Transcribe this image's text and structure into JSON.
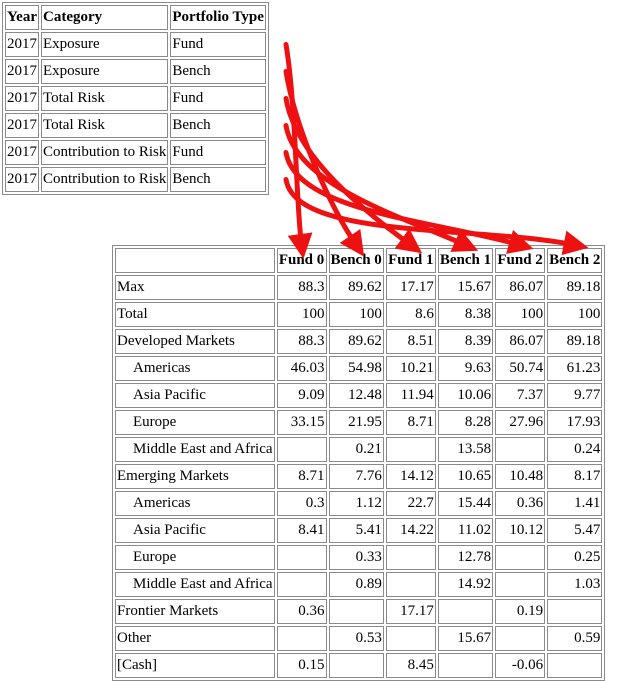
{
  "top_table": {
    "headers": [
      "Year",
      "Category",
      "Portfolio Type"
    ],
    "rows": [
      [
        "2017",
        "Exposure",
        "Fund"
      ],
      [
        "2017",
        "Exposure",
        "Bench"
      ],
      [
        "2017",
        "Total Risk",
        "Fund"
      ],
      [
        "2017",
        "Total Risk",
        "Bench"
      ],
      [
        "2017",
        "Contribution to Risk",
        "Fund"
      ],
      [
        "2017",
        "Contribution to Risk",
        "Bench"
      ]
    ]
  },
  "bottom_table": {
    "headers": [
      "",
      "Fund 0",
      "Bench 0",
      "Fund 1",
      "Bench 1",
      "Fund 2",
      "Bench 2"
    ],
    "rows": [
      {
        "label": "Max",
        "indent": false,
        "values": [
          "88.3",
          "89.62",
          "17.17",
          "15.67",
          "86.07",
          "89.18"
        ]
      },
      {
        "label": "Total",
        "indent": false,
        "values": [
          "100",
          "100",
          "8.6",
          "8.38",
          "100",
          "100"
        ]
      },
      {
        "label": "Developed Markets",
        "indent": false,
        "values": [
          "88.3",
          "89.62",
          "8.51",
          "8.39",
          "86.07",
          "89.18"
        ]
      },
      {
        "label": "Americas",
        "indent": true,
        "values": [
          "46.03",
          "54.98",
          "10.21",
          "9.63",
          "50.74",
          "61.23"
        ]
      },
      {
        "label": "Asia Pacific",
        "indent": true,
        "values": [
          "9.09",
          "12.48",
          "11.94",
          "10.06",
          "7.37",
          "9.77"
        ]
      },
      {
        "label": "Europe",
        "indent": true,
        "values": [
          "33.15",
          "21.95",
          "8.71",
          "8.28",
          "27.96",
          "17.93"
        ]
      },
      {
        "label": "Middle East and Africa",
        "indent": true,
        "values": [
          "",
          "0.21",
          "",
          "13.58",
          "",
          "0.24"
        ]
      },
      {
        "label": "Emerging Markets",
        "indent": false,
        "values": [
          "8.71",
          "7.76",
          "14.12",
          "10.65",
          "10.48",
          "8.17"
        ]
      },
      {
        "label": "Americas",
        "indent": true,
        "values": [
          "0.3",
          "1.12",
          "22.7",
          "15.44",
          "0.36",
          "1.41"
        ]
      },
      {
        "label": "Asia Pacific",
        "indent": true,
        "values": [
          "8.41",
          "5.41",
          "14.22",
          "11.02",
          "10.12",
          "5.47"
        ]
      },
      {
        "label": "Europe",
        "indent": true,
        "values": [
          "",
          "0.33",
          "",
          "12.78",
          "",
          "0.25"
        ]
      },
      {
        "label": "Middle East and Africa",
        "indent": true,
        "values": [
          "",
          "0.89",
          "",
          "14.92",
          "",
          "1.03"
        ]
      },
      {
        "label": "Frontier Markets",
        "indent": false,
        "values": [
          "0.36",
          "",
          "17.17",
          "",
          "0.19",
          ""
        ]
      },
      {
        "label": "Other",
        "indent": false,
        "values": [
          "",
          "0.53",
          "",
          "15.67",
          "",
          "0.59"
        ]
      },
      {
        "label": "[Cash]",
        "indent": false,
        "values": [
          "0.15",
          "",
          "8.45",
          "",
          "-0.06",
          ""
        ]
      }
    ]
  },
  "arrow_color": "#ee1111"
}
